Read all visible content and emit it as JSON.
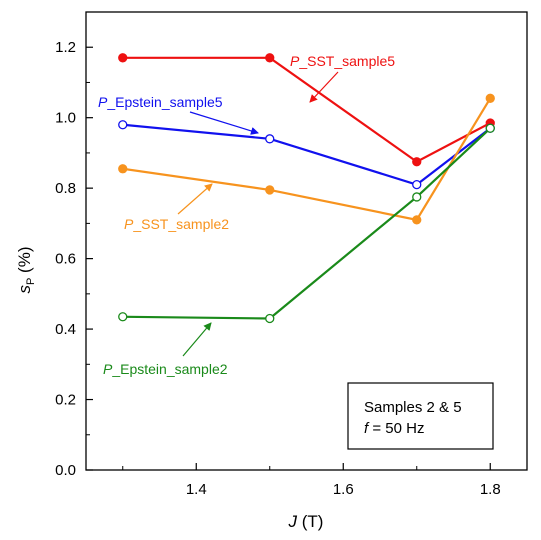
{
  "chart_data": {
    "type": "line",
    "xlabel": "J",
    "xunit": "(T)",
    "ylabel": "s",
    "ylabel_sub": "P",
    "yunit": "(%)",
    "xlim": [
      1.25,
      1.85
    ],
    "ylim": [
      0.0,
      1.3
    ],
    "xticks": [
      1.4,
      1.6,
      1.8
    ],
    "yticks": [
      0.0,
      0.2,
      0.4,
      0.6,
      0.8,
      1.0,
      1.2
    ],
    "xtick_labels": [
      "1.4",
      "1.6",
      "1.8"
    ],
    "ytick_labels": [
      "0.0",
      "0.2",
      "0.4",
      "0.6",
      "0.8",
      "1.0",
      "1.2"
    ],
    "grid": false,
    "legend_box": {
      "line1": "Samples 2 & 5",
      "line2_var": "f",
      "line2_rest": " = 50 Hz"
    },
    "series": [
      {
        "name": "P_SST_sample5",
        "color": "#ee1111",
        "marker": "filled",
        "x": [
          1.3,
          1.5,
          1.7,
          1.8
        ],
        "values": [
          1.17,
          1.17,
          0.875,
          0.985
        ],
        "label_italic": "P",
        "label_rest": "_SST_sample5"
      },
      {
        "name": "P_Epstein_sample5",
        "color": "#1111ee",
        "marker": "open",
        "x": [
          1.3,
          1.5,
          1.7,
          1.8
        ],
        "values": [
          0.98,
          0.94,
          0.81,
          0.97
        ],
        "label_italic": "P",
        "label_rest": "_Epstein_sample5"
      },
      {
        "name": "P_SST_sample2",
        "color": "#f7931e",
        "marker": "filled",
        "x": [
          1.3,
          1.5,
          1.7,
          1.8
        ],
        "values": [
          0.855,
          0.795,
          0.71,
          1.055
        ],
        "label_italic": "P",
        "label_rest": "_SST_sample2"
      },
      {
        "name": "P_Epstein_sample2",
        "color": "#1a8a1a",
        "marker": "open",
        "x": [
          1.3,
          1.5,
          1.7,
          1.8
        ],
        "values": [
          0.435,
          0.43,
          0.775,
          0.97
        ],
        "label_italic": "P",
        "label_rest": "_Epstein_sample2"
      }
    ]
  }
}
